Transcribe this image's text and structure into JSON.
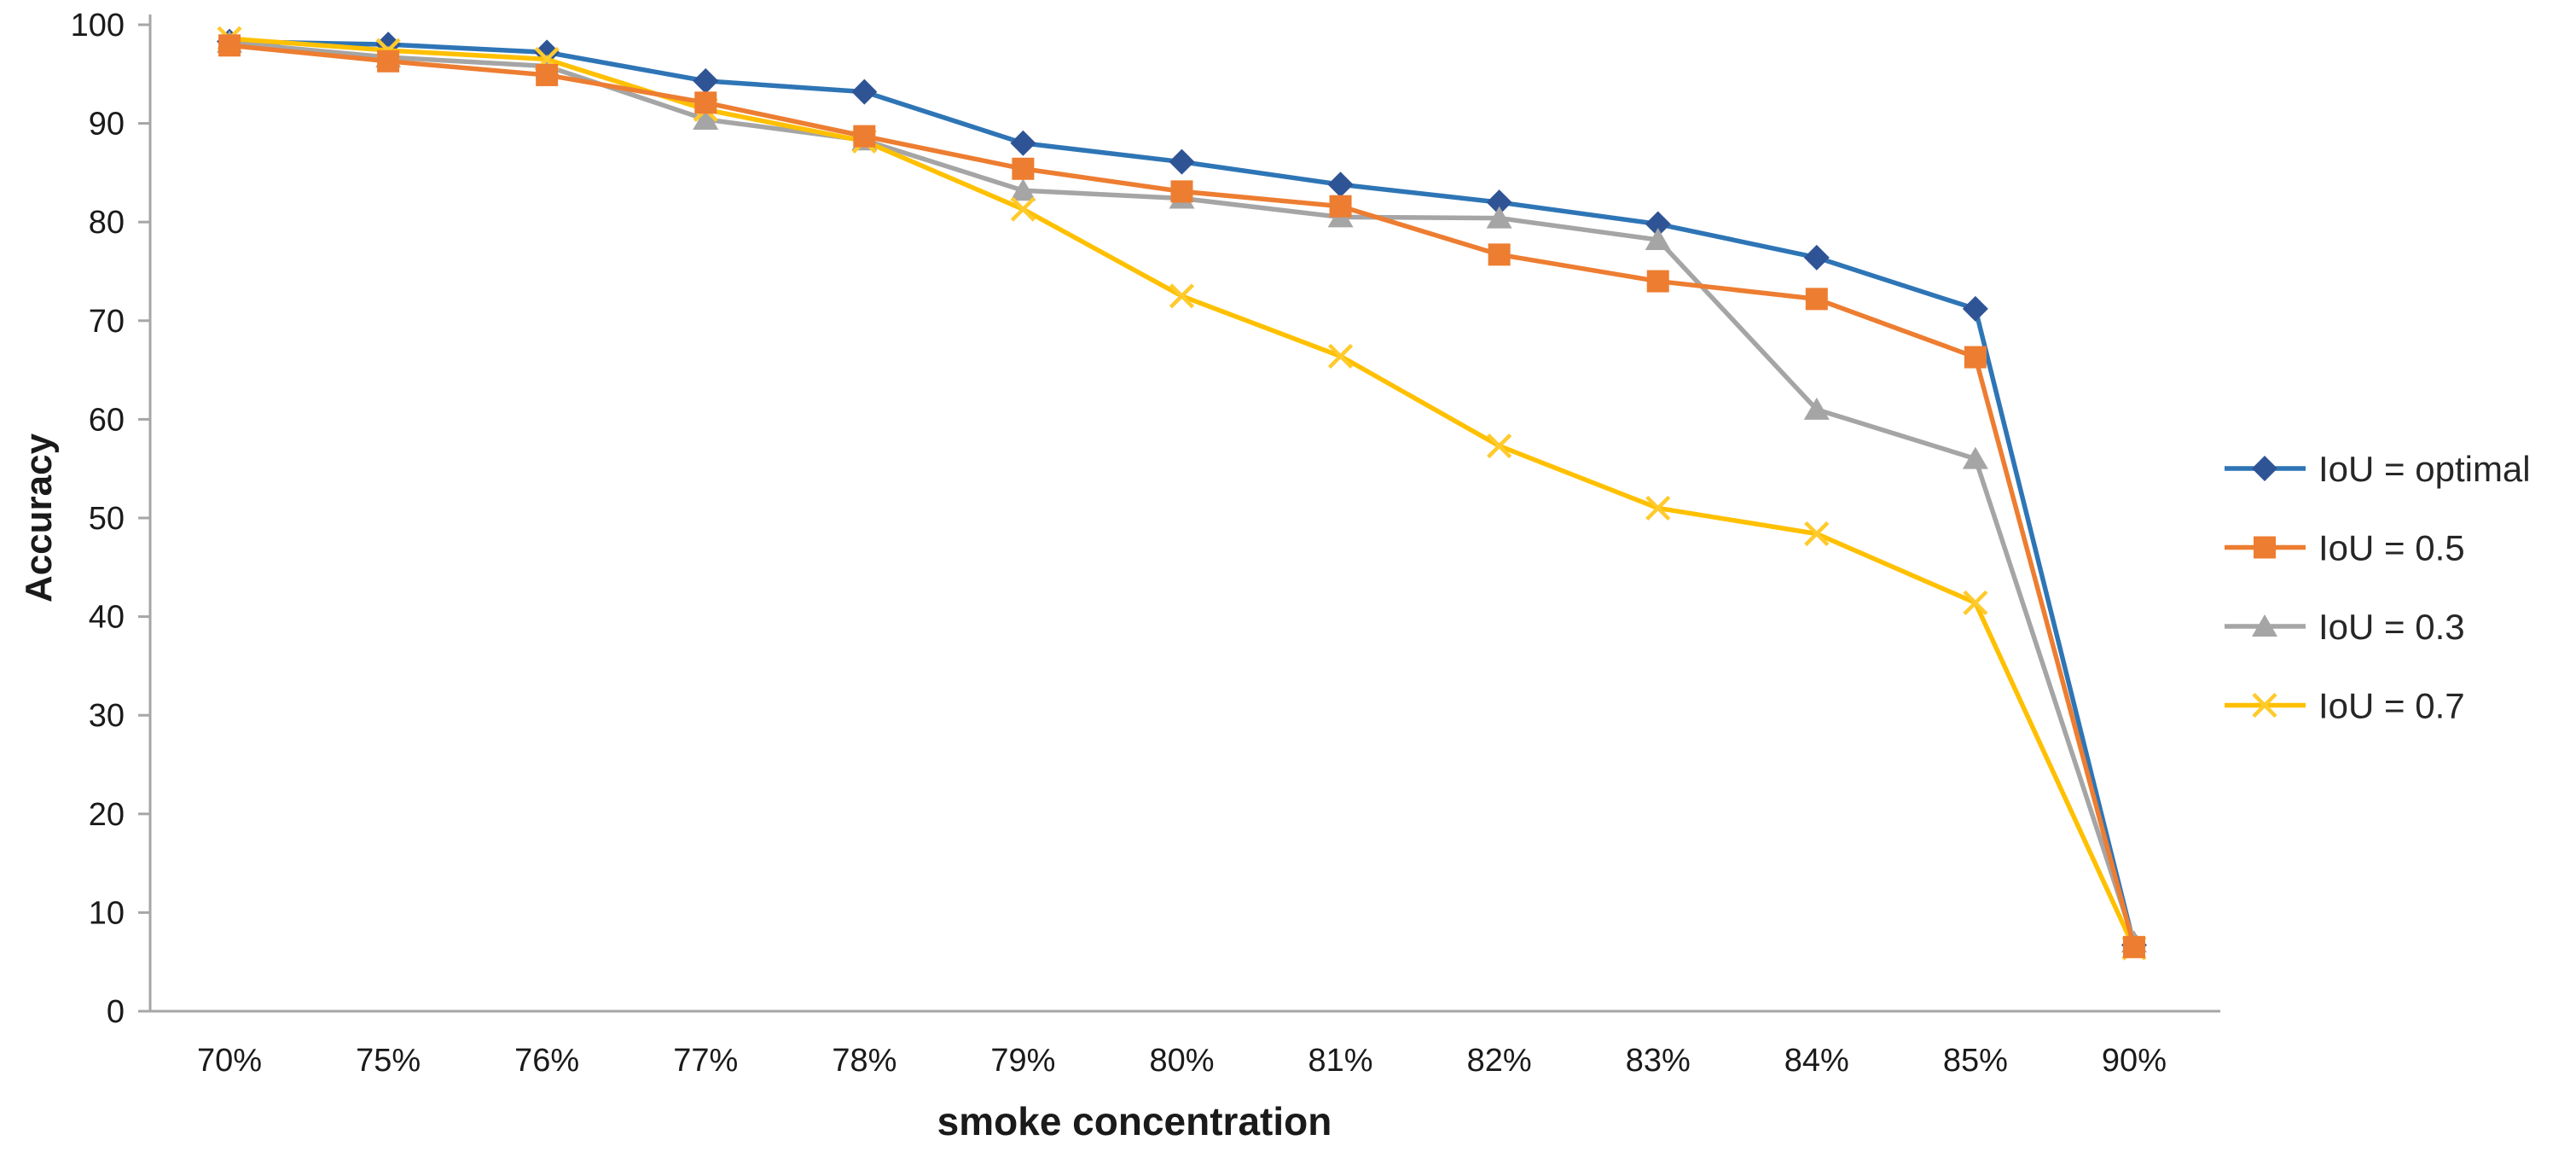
{
  "chart_data": {
    "type": "line",
    "title": "",
    "xlabel": "smoke concentration",
    "ylabel": "Accuracy",
    "categories": [
      "70%",
      "75%",
      "76%",
      "77%",
      "78%",
      "79%",
      "80%",
      "81%",
      "82%",
      "83%",
      "84%",
      "85%",
      "90%"
    ],
    "series": [
      {
        "name": "IoU = optimal",
        "marker": "diamond",
        "color": "#2e75b6",
        "marker_color": "#2f5496",
        "values": [
          98.3,
          98.0,
          97.2,
          94.3,
          93.2,
          88.0,
          86.1,
          83.8,
          82.0,
          79.8,
          76.4,
          71.2,
          6.7
        ]
      },
      {
        "name": "IoU = 0.5",
        "marker": "square",
        "color": "#ed7d31",
        "marker_color": "#ed7d31",
        "values": [
          97.9,
          96.3,
          94.9,
          92.1,
          88.7,
          85.4,
          83.1,
          81.6,
          76.7,
          74.0,
          72.2,
          66.3,
          6.5
        ]
      },
      {
        "name": "IoU = 0.3",
        "marker": "triangle",
        "color": "#a5a5a5",
        "marker_color": "#a5a5a5",
        "values": [
          98.2,
          96.7,
          95.8,
          90.4,
          88.3,
          83.2,
          82.4,
          80.5,
          80.4,
          78.2,
          61.0,
          56.0,
          7.0
        ]
      },
      {
        "name": "IoU = 0.7",
        "marker": "x",
        "color": "#ffc000",
        "marker_color": "#ffca2c",
        "values": [
          98.6,
          97.4,
          96.5,
          91.4,
          88.2,
          81.3,
          72.5,
          66.4,
          57.3,
          51.0,
          48.4,
          41.4,
          6.4
        ]
      }
    ],
    "ylim": [
      0,
      100
    ],
    "yticks": [
      0,
      10,
      20,
      30,
      40,
      50,
      60,
      70,
      80,
      90,
      100
    ],
    "grid": false,
    "legend_position": "right",
    "colors": {
      "axis_line": "#a6a6a6",
      "tick_text": "#1a1a1a",
      "legend_text": "#262626",
      "background": "#ffffff"
    }
  }
}
